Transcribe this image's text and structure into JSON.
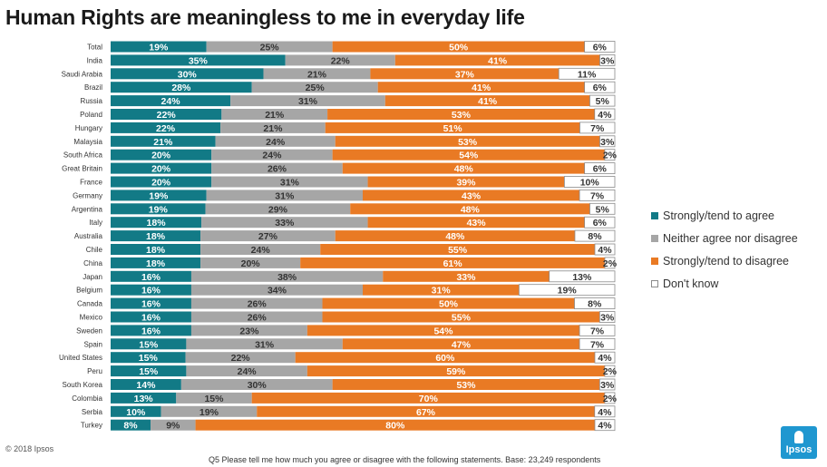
{
  "title": "Human Rights are meaningless to me in everyday life",
  "copyright": "© 2018 Ipsos",
  "footnote": "Q5 Please tell me how much you agree or disagree with the following statements. Base: 23,249 respondents",
  "logo_text": "Ipsos",
  "colors": {
    "agree": "#127a86",
    "neutral": "#a6a6a6",
    "disagree": "#e97a24",
    "dontknow": "#ffffff",
    "dontknow_border": "#8a8a8a"
  },
  "chart_data": {
    "type": "bar",
    "orientation": "horizontal",
    "stacked": true,
    "title": "Human Rights are meaningless to me in everyday life",
    "unit": "%",
    "legend_position": "right",
    "categories": [
      "Total",
      "India",
      "Saudi Arabia",
      "Brazil",
      "Russia",
      "Poland",
      "Hungary",
      "Malaysia",
      "South Africa",
      "Great Britain",
      "France",
      "Germany",
      "Argentina",
      "Italy",
      "Australia",
      "Chile",
      "China",
      "Japan",
      "Belgium",
      "Canada",
      "Mexico",
      "Sweden",
      "Spain",
      "United States",
      "Peru",
      "South Korea",
      "Colombia",
      "Serbia",
      "Turkey"
    ],
    "series": [
      {
        "name": "Strongly/tend to agree",
        "key": "agree",
        "values": [
          19,
          35,
          30,
          28,
          24,
          22,
          22,
          21,
          20,
          20,
          20,
          19,
          19,
          18,
          18,
          18,
          18,
          16,
          16,
          16,
          16,
          16,
          15,
          15,
          15,
          14,
          13,
          10,
          8
        ]
      },
      {
        "name": "Neither agree nor disagree",
        "key": "neutral",
        "values": [
          25,
          22,
          21,
          25,
          31,
          21,
          21,
          24,
          24,
          26,
          31,
          31,
          29,
          33,
          27,
          24,
          20,
          38,
          34,
          26,
          26,
          23,
          31,
          22,
          24,
          30,
          15,
          19,
          9
        ]
      },
      {
        "name": "Strongly/tend to disagree",
        "key": "disagree",
        "values": [
          50,
          41,
          37,
          41,
          41,
          53,
          51,
          53,
          54,
          48,
          39,
          43,
          48,
          43,
          48,
          55,
          61,
          33,
          31,
          50,
          55,
          54,
          47,
          60,
          59,
          53,
          70,
          67,
          80
        ]
      },
      {
        "name": "Don't know",
        "key": "dontknow",
        "values": [
          6,
          3,
          11,
          6,
          5,
          4,
          7,
          3,
          2,
          6,
          10,
          7,
          5,
          6,
          8,
          4,
          2,
          13,
          19,
          8,
          3,
          7,
          7,
          4,
          2,
          3,
          2,
          4,
          4
        ]
      }
    ]
  }
}
